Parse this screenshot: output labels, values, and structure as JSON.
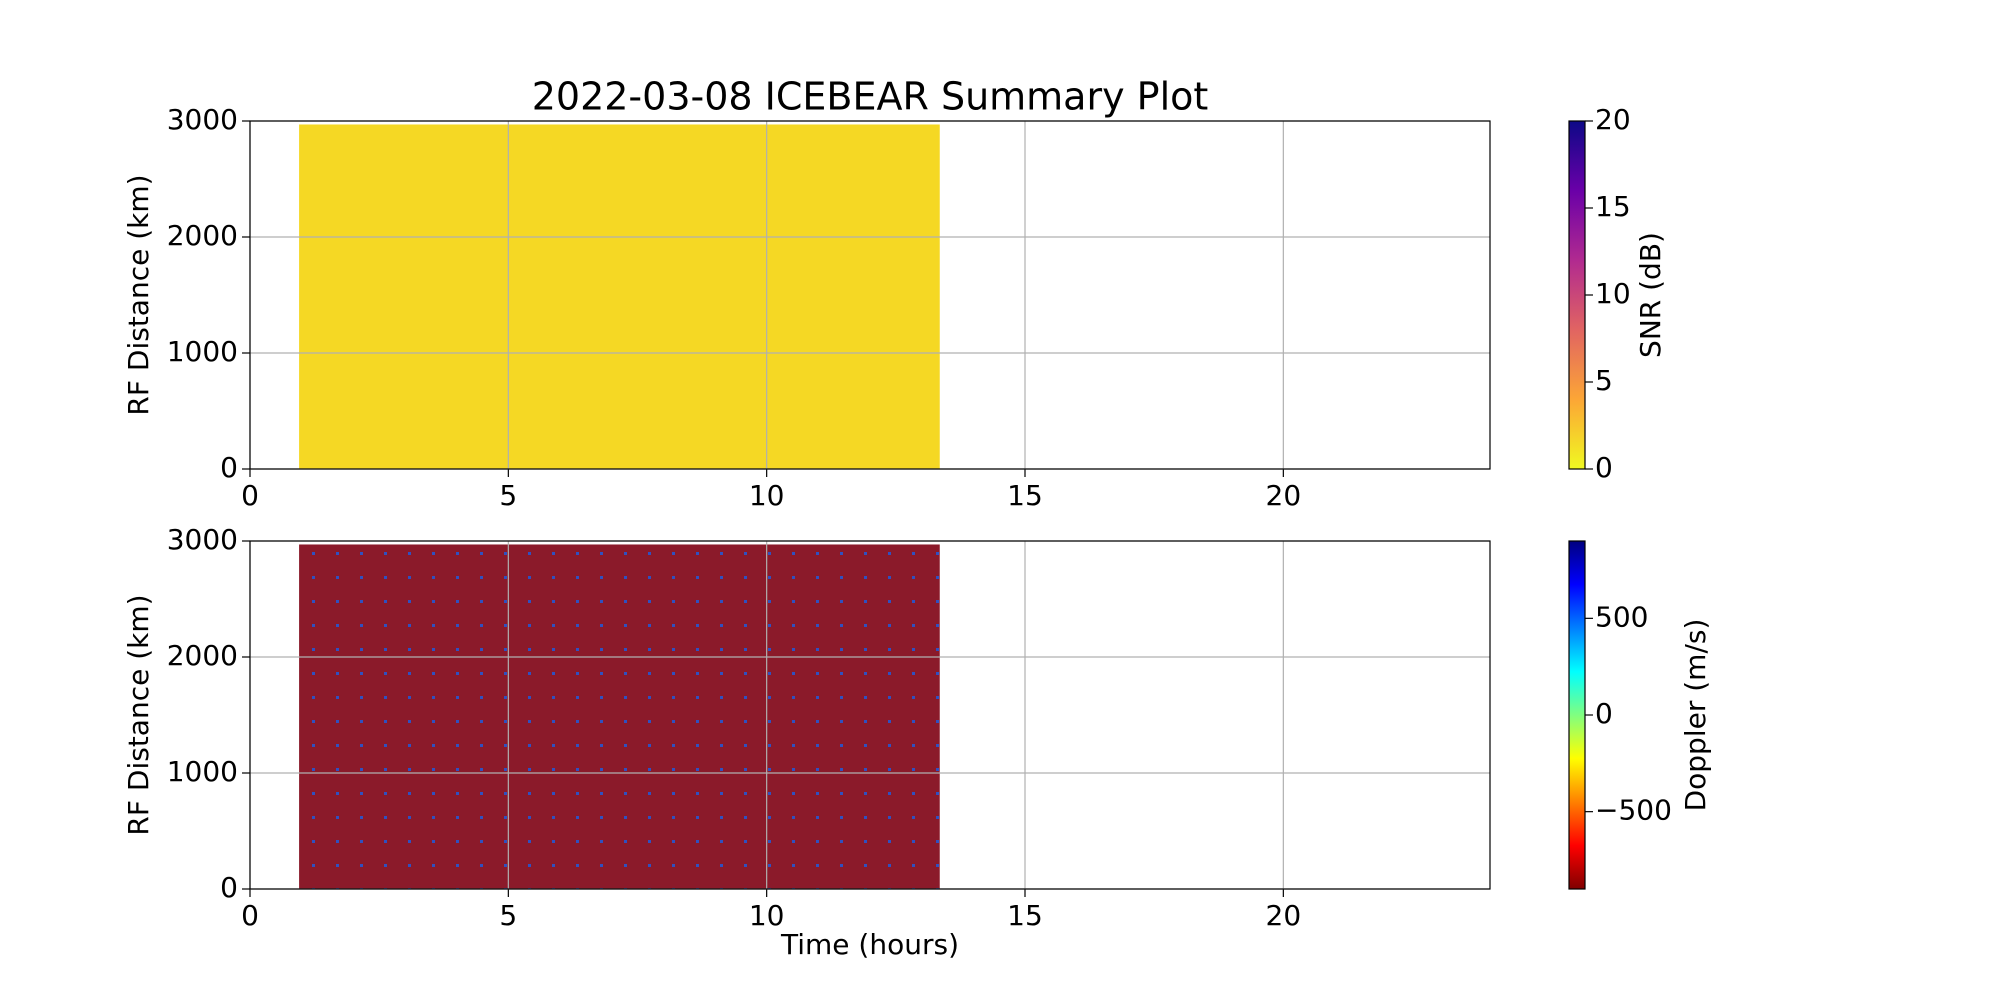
{
  "chart_data": [
    {
      "type": "heatmap",
      "title": "2022-03-08 ICEBEAR Summary Plot",
      "ylabel": "RF Distance (km)",
      "xlim": [
        0,
        24
      ],
      "xticks": [
        0,
        5,
        10,
        15,
        20
      ],
      "ylim": [
        0,
        3000
      ],
      "yticks": [
        0,
        1000,
        2000,
        3000
      ],
      "grid": true,
      "x": [
        0.95,
        13.35
      ],
      "y": [
        0,
        2970
      ],
      "color": "#f5d824",
      "colorbar": {
        "label": "SNR (dB)",
        "lim": [
          0,
          20
        ],
        "ticks": [
          0,
          5,
          10,
          15,
          20
        ],
        "colormap": [
          "#f0f921",
          "#fca636",
          "#e16462",
          "#b12a90",
          "#6a00a8",
          "#0d0887"
        ]
      }
    },
    {
      "type": "heatmap",
      "xlabel": "Time (hours)",
      "ylabel": "RF Distance (km)",
      "xlim": [
        0,
        24
      ],
      "xticks": [
        0,
        5,
        10,
        15,
        20
      ],
      "ylim": [
        0,
        3000
      ],
      "yticks": [
        0,
        1000,
        2000,
        3000
      ],
      "grid": true,
      "x": [
        0.95,
        13.35
      ],
      "y": [
        0,
        2970
      ],
      "colors": [
        "#8b1a2a",
        "#2a2a8a",
        "#1a1a5a",
        "#c03030",
        "#3050c0",
        "#e0a020",
        "#40c0c0",
        "#701040"
      ],
      "colorbar": {
        "label": "Doppler (m/s)",
        "lim": [
          -900,
          900
        ],
        "ticks": [
          {
            "value": -500,
            "label": "−500"
          },
          0,
          500
        ],
        "colormap": [
          "#800000",
          "#ff0000",
          "#ff8000",
          "#ffff00",
          "#80ff80",
          "#00ffff",
          "#0080ff",
          "#0000ff",
          "#000080"
        ]
      }
    }
  ]
}
